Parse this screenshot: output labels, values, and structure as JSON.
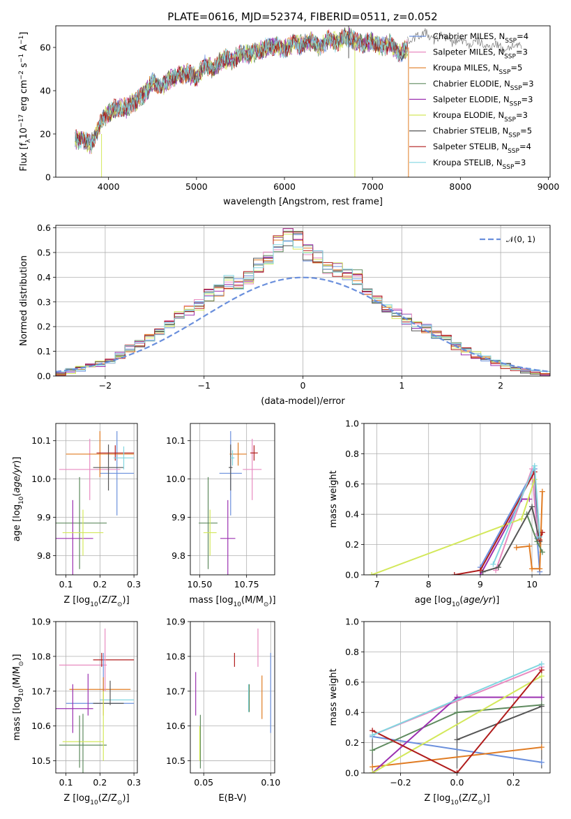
{
  "figure": {
    "title": "PLATE=0616, MJD=52374, FIBERID=0511, z=0.052"
  },
  "models": [
    {
      "name": "Chabrier MILES",
      "nssp": "4",
      "color": "#6a8fdc"
    },
    {
      "name": "Salpeter MILES",
      "nssp": "3",
      "color": "#e88ac0"
    },
    {
      "name": "Kroupa MILES",
      "nssp": "5",
      "color": "#e07b22"
    },
    {
      "name": "Chabrier ELODIE",
      "nssp": "3",
      "color": "#5e8a5e"
    },
    {
      "name": "Salpeter ELODIE",
      "nssp": "3",
      "color": "#9b30b0"
    },
    {
      "name": "Kroupa ELODIE",
      "nssp": "3",
      "color": "#d3e85a"
    },
    {
      "name": "Chabrier STELIB",
      "nssp": "5",
      "color": "#555555"
    },
    {
      "name": "Salpeter STELIB",
      "nssp": "4",
      "color": "#b01c1c"
    },
    {
      "name": "Kroupa STELIB",
      "nssp": "3",
      "color": "#82d6e0"
    }
  ],
  "chart_data": [
    {
      "id": "spectrum",
      "type": "line",
      "xlabel": "wavelength [Angstrom, rest frame]",
      "ylabel_parts": [
        "Flux [f",
        "λ",
        "10",
        "−17",
        " erg cm",
        "−2",
        " s",
        "−1",
        " A",
        "−1",
        "]"
      ],
      "xlim": [
        3400,
        9020
      ],
      "ylim": [
        0,
        70
      ],
      "xticks": [
        4000,
        5000,
        6000,
        7000,
        8000,
        9000
      ],
      "yticks": [
        0,
        20,
        40,
        60
      ],
      "legend_position": "upper right",
      "legend_suffix_label": "N",
      "legend_suffix_sub": "SSP",
      "envelope": {
        "x": [
          3620,
          3700,
          3800,
          3900,
          3960,
          4000,
          4100,
          4200,
          4300,
          4400,
          4500,
          4600,
          4700,
          4800,
          4900,
          5000,
          5100,
          5200,
          5300,
          5400,
          5500,
          5600,
          5700,
          5800,
          5900,
          6000,
          6100,
          6200,
          6300,
          6400,
          6500,
          6600,
          6700,
          6800,
          6900,
          7000,
          7100,
          7200,
          7300,
          7400
        ],
        "y": [
          17,
          18,
          15,
          24,
          28,
          30,
          32,
          32,
          35,
          38,
          44,
          42,
          45,
          47,
          48,
          46,
          52,
          50,
          55,
          54,
          57,
          57,
          58,
          60,
          61,
          59,
          62,
          61,
          63,
          60,
          64,
          62,
          65,
          63,
          62,
          63,
          60,
          62,
          57,
          60
        ]
      },
      "extra_observed": {
        "x": [
          7400,
          7500,
          7600,
          7700,
          7800,
          7900,
          8000,
          8100,
          8200,
          8300,
          8400,
          8500,
          8600,
          8700
        ],
        "y": [
          63,
          65,
          67,
          63,
          66,
          62,
          64,
          61,
          63,
          60,
          62,
          59,
          61,
          60
        ]
      },
      "spikes": [
        {
          "x": 3920,
          "y_top": 20,
          "y_bottom": 0,
          "series": "Kroupa ELODIE"
        },
        {
          "x": 6800,
          "y_top": 62,
          "y_bottom": 0,
          "series": "Kroupa ELODIE"
        },
        {
          "x": 6730,
          "y_top": 70,
          "y_bottom": 55,
          "series": "Chabrier STELIB"
        },
        {
          "x": 7410,
          "y_top": 60,
          "y_bottom": 0,
          "series": "Kroupa MILES"
        }
      ]
    },
    {
      "id": "residual-histogram",
      "type": "step-histogram",
      "xlabel": "(data-model)/error",
      "ylabel": "Normed distribution",
      "xlim": [
        -2.5,
        2.5
      ],
      "ylim": [
        0,
        0.61
      ],
      "xticks": [
        -2,
        -1,
        0,
        1,
        2
      ],
      "yticks": [
        0.0,
        0.1,
        0.2,
        0.3,
        0.4,
        0.5,
        0.6
      ],
      "grid": true,
      "bin_width": 0.1,
      "bin_start": -2.6,
      "base_shape": [
        0.008,
        0.012,
        0.02,
        0.03,
        0.04,
        0.05,
        0.065,
        0.085,
        0.11,
        0.13,
        0.155,
        0.18,
        0.21,
        0.24,
        0.265,
        0.285,
        0.33,
        0.35,
        0.38,
        0.38,
        0.4,
        0.45,
        0.48,
        0.54,
        0.56,
        0.55,
        0.5,
        0.48,
        0.44,
        0.43,
        0.42,
        0.4,
        0.33,
        0.3,
        0.28,
        0.25,
        0.23,
        0.2,
        0.19,
        0.17,
        0.15,
        0.12,
        0.1,
        0.085,
        0.07,
        0.055,
        0.04,
        0.03,
        0.02,
        0.015,
        0.01,
        0.005
      ],
      "reference_curve": {
        "label": "𝒩(0, 1)",
        "mean": 0,
        "sigma": 1,
        "color": "#6a8fdc"
      }
    },
    {
      "id": "age-vs-metallicity",
      "type": "errorbar",
      "xlabel_prefix": "Z [log",
      "xlabel_sub": "10",
      "xlabel_suffix": "(Z/Z",
      "xlabel_sun": "⊙",
      "xlabel_end": ")]",
      "ylabel_prefix": "age  [log",
      "ylabel_sub": "10",
      "ylabel_suffix": "(age/yr)]",
      "xlim": [
        0.07,
        0.31
      ],
      "ylim": [
        9.75,
        10.145
      ],
      "xticks": [
        "0.1",
        "0.2",
        "0.3"
      ],
      "yticks": [
        "9.8",
        "9.9",
        "10.0",
        "10.1"
      ],
      "grid": true,
      "points": [
        {
          "series": "Chabrier MILES",
          "x": 0.25,
          "xerr": 0.05,
          "y": 10.015,
          "yerr": 0.11
        },
        {
          "series": "Salpeter MILES",
          "x": 0.17,
          "xerr": 0.09,
          "y": 10.025,
          "yerr": 0.08
        },
        {
          "series": "Kroupa MILES",
          "x": 0.2,
          "xerr": 0.1,
          "y": 10.065,
          "yerr": 0.06
        },
        {
          "series": "Chabrier ELODIE",
          "x": 0.14,
          "xerr": 0.08,
          "y": 9.885,
          "yerr": 0.12
        },
        {
          "series": "Salpeter ELODIE",
          "x": 0.12,
          "xerr": 0.06,
          "y": 9.845,
          "yerr": 0.1
        },
        {
          "series": "Kroupa ELODIE",
          "x": 0.15,
          "xerr": 0.06,
          "y": 9.86,
          "yerr": 0.06
        },
        {
          "series": "Chabrier STELIB",
          "x": 0.225,
          "xerr": 0.045,
          "y": 10.03,
          "yerr": 0.06
        },
        {
          "series": "Salpeter STELIB",
          "x": 0.245,
          "xerr": 0.055,
          "y": 10.068,
          "yerr": 0.02
        },
        {
          "series": "Kroupa STELIB",
          "x": 0.27,
          "xerr": 0.03,
          "y": 10.055,
          "yerr": 0.03
        }
      ]
    },
    {
      "id": "age-vs-mass",
      "type": "errorbar",
      "xlabel_prefix": "mass [log",
      "xlabel_sub": "10",
      "xlabel_suffix": "(M/M",
      "xlabel_sun": "⊙",
      "xlabel_end": ")]",
      "xlim": [
        10.45,
        10.9
      ],
      "ylim": [
        9.75,
        10.145
      ],
      "xticks": [
        "10.50",
        "10.75"
      ],
      "yticks": [
        "9.8",
        "9.9",
        "10.0",
        "10.1"
      ],
      "grid": true,
      "points": [
        {
          "series": "Chabrier MILES",
          "x": 10.665,
          "xerr": 0.06,
          "y": 10.015,
          "yerr": 0.11
        },
        {
          "series": "Salpeter MILES",
          "x": 10.78,
          "xerr": 0.05,
          "y": 10.025,
          "yerr": 0.08
        },
        {
          "series": "Kroupa MILES",
          "x": 10.705,
          "xerr": 0.045,
          "y": 10.065,
          "yerr": 0.03
        },
        {
          "series": "Chabrier ELODIE",
          "x": 10.545,
          "xerr": 0.05,
          "y": 9.885,
          "yerr": 0.12
        },
        {
          "series": "Salpeter ELODIE",
          "x": 10.65,
          "xerr": 0.04,
          "y": 9.845,
          "yerr": 0.1
        },
        {
          "series": "Kroupa ELODIE",
          "x": 10.555,
          "xerr": 0.035,
          "y": 9.86,
          "yerr": 0.06
        },
        {
          "series": "Chabrier STELIB",
          "x": 10.665,
          "xerr": 0.01,
          "y": 10.03,
          "yerr": 0.06
        },
        {
          "series": "Salpeter STELIB",
          "x": 10.79,
          "xerr": 0.02,
          "y": 10.068,
          "yerr": 0.02
        },
        {
          "series": "Kroupa STELIB",
          "x": 10.675,
          "xerr": 0.01,
          "y": 10.055,
          "yerr": 0.02
        }
      ]
    },
    {
      "id": "weight-vs-age",
      "type": "line",
      "xlabel_prefix": "age  [log",
      "xlabel_sub": "10",
      "xlabel_suffix": "(age/yr)]",
      "ylabel": "mass weight",
      "xlim": [
        6.75,
        10.35
      ],
      "ylim": [
        0,
        1.0
      ],
      "xticks": [
        "7",
        "8",
        "9",
        "10"
      ],
      "yticks": [
        "0.0",
        "0.2",
        "0.4",
        "0.6",
        "0.8",
        "1.0"
      ],
      "grid": true,
      "series": [
        {
          "name": "Chabrier MILES",
          "x": [
            9.0,
            10.05,
            10.1,
            10.15
          ],
          "y": [
            0.05,
            0.7,
            0.24,
            0.02
          ]
        },
        {
          "name": "Salpeter MILES",
          "x": [
            9.3,
            10.0,
            10.1
          ],
          "y": [
            0.03,
            0.7,
            0.27
          ]
        },
        {
          "name": "Kroupa MILES",
          "x": [
            9.7,
            9.95,
            10.0,
            10.15,
            10.2
          ],
          "y": [
            0.18,
            0.19,
            0.04,
            0.04,
            0.55
          ]
        },
        {
          "name": "Chabrier ELODIE",
          "x": [
            9.9,
            10.1,
            10.2
          ],
          "y": [
            0.4,
            0.22,
            0.15
          ]
        },
        {
          "name": "Salpeter ELODIE",
          "x": [
            9.0,
            9.8,
            9.95
          ],
          "y": [
            0.0,
            0.5,
            0.5
          ]
        },
        {
          "name": "Kroupa ELODIE",
          "x": [
            6.9,
            9.8,
            10.05
          ],
          "y": [
            0.0,
            0.37,
            0.63
          ]
        },
        {
          "name": "Chabrier STELIB",
          "x": [
            9.05,
            9.35,
            10.0,
            10.15
          ],
          "y": [
            0.02,
            0.05,
            0.45,
            0.22
          ]
        },
        {
          "name": "Salpeter STELIB",
          "x": [
            8.5,
            9.0,
            10.05,
            10.15,
            10.2
          ],
          "y": [
            0.0,
            0.03,
            0.68,
            0.23,
            0.28
          ]
        },
        {
          "name": "Kroupa STELIB",
          "x": [
            9.25,
            10.05,
            10.15
          ],
          "y": [
            0.07,
            0.72,
            0.25
          ]
        }
      ]
    },
    {
      "id": "mass-vs-metallicity",
      "type": "errorbar",
      "xlabel_prefix": "Z [log",
      "xlabel_sub": "10",
      "xlabel_suffix": "(Z/Z",
      "xlabel_sun": "⊙",
      "xlabel_end": ")]",
      "ylabel_prefix": "mass [log",
      "ylabel_sub": "10",
      "ylabel_suffix": "(M/M",
      "ylabel_sun": "⊙",
      "ylabel_end": ")]",
      "xlim": [
        0.07,
        0.31
      ],
      "ylim": [
        10.465,
        10.9
      ],
      "xticks": [
        "0.1",
        "0.2",
        "0.3"
      ],
      "yticks": [
        "10.5",
        "10.6",
        "10.7",
        "10.8",
        "10.9"
      ],
      "grid": true,
      "points": [
        {
          "series": "Chabrier MILES",
          "x": 0.2,
          "xerr": 0.1,
          "y": 10.665,
          "yerr": 0.0
        },
        {
          "series": "Salpeter MILES",
          "x": 0.15,
          "xerr": 0.07,
          "y": 10.775,
          "yerr": 0.0
        },
        {
          "series": "Kroupa MILES",
          "x": 0.2,
          "xerr": 0.09,
          "y": 10.705,
          "yerr": 0.0
        },
        {
          "series": "Chabrier ELODIE",
          "x": 0.15,
          "xerr": 0.07,
          "y": 10.545,
          "yerr": 0.09
        },
        {
          "series": "Salpeter ELODIE",
          "x": 0.12,
          "xerr": 0.06,
          "y": 10.65,
          "yerr": 0.07
        },
        {
          "series": "Kroupa ELODIE",
          "x": 0.15,
          "xerr": 0.06,
          "y": 10.555,
          "yerr": 0.0
        },
        {
          "series": "Chabrier STELIB",
          "x": 0.225,
          "xerr": 0.045,
          "y": 10.665,
          "yerr": 0.0
        },
        {
          "series": "Salpeter STELIB",
          "x": 0.24,
          "xerr": 0.06,
          "y": 10.79,
          "yerr": 0.0
        },
        {
          "series": "Kroupa STELIB",
          "x": 0.25,
          "xerr": 0.05,
          "y": 10.675,
          "yerr": 0.0
        }
      ],
      "vertical_marks": [
        {
          "series": "Salpeter MILES",
          "x": 0.215,
          "y_from": 10.7,
          "y_to": 10.88
        },
        {
          "series": "Chabrier MILES",
          "x": 0.21,
          "y_from": 10.7,
          "y_to": 10.81
        },
        {
          "series": "Salpeter ELODIE",
          "x": 0.165,
          "y_from": 10.63,
          "y_to": 10.75
        },
        {
          "series": "Kroupa MILES",
          "x": 0.21,
          "y_from": 10.63,
          "y_to": 10.74
        },
        {
          "series": "Chabrier STELIB",
          "x": 0.23,
          "y_from": 10.66,
          "y_to": 10.73
        },
        {
          "series": "Salpeter STELIB",
          "x": 0.205,
          "y_from": 10.77,
          "y_to": 10.81
        },
        {
          "series": "Kroupa ELODIE",
          "x": 0.21,
          "y_from": 10.5,
          "y_to": 10.7
        },
        {
          "series": "Chabrier ELODIE",
          "x": 0.14,
          "y_from": 10.48,
          "y_to": 10.63
        }
      ]
    },
    {
      "id": "mass-vs-ebv",
      "type": "errorbar",
      "xlabel": "E(B-V)",
      "xlim": [
        0.04,
        0.103
      ],
      "ylim": [
        10.465,
        10.9
      ],
      "xticks": [
        "0.05",
        "0.10"
      ],
      "yticks": [
        "10.5",
        "10.6",
        "10.7",
        "10.8",
        "10.9"
      ],
      "grid": true,
      "segments": [
        {
          "series": "Salpeter ELODIE",
          "x": 0.044,
          "y_from": 10.63,
          "y_to": 10.755
        },
        {
          "series": "Chabrier ELODIE",
          "x": 0.0475,
          "y_from": 10.478,
          "y_to": 10.632
        },
        {
          "series": "Kroupa ELODIE",
          "x": 0.047,
          "y_from": 10.5,
          "y_to": 10.6
        },
        {
          "series": "Salpeter STELIB",
          "x": 0.073,
          "y_from": 10.77,
          "y_to": 10.81
        },
        {
          "series": "Kroupa STELIB",
          "x": 0.0835,
          "y_from": 10.64,
          "y_to": 10.72
        },
        {
          "series": "Chabrier ELODIE",
          "x": 0.084,
          "y_from": 10.64,
          "y_to": 10.72
        },
        {
          "series": "Salpeter MILES",
          "x": 0.0905,
          "y_from": 10.77,
          "y_to": 10.88
        },
        {
          "series": "Kroupa MILES",
          "x": 0.0935,
          "y_from": 10.62,
          "y_to": 10.745
        },
        {
          "series": "Chabrier MILES",
          "x": 0.1,
          "y_from": 10.58,
          "y_to": 10.81
        }
      ]
    },
    {
      "id": "weight-vs-metallicity",
      "type": "line",
      "xlabel_prefix": "Z [log",
      "xlabel_sub": "10",
      "xlabel_suffix": "(Z/Z",
      "xlabel_sun": "⊙",
      "xlabel_end": ")]",
      "ylabel": "mass weight",
      "xlim": [
        -0.33,
        0.33
      ],
      "ylim": [
        0,
        1.0
      ],
      "xticks": [
        "−0.2",
        "0.0",
        "0.2"
      ],
      "yticks": [
        "0.0",
        "0.2",
        "0.4",
        "0.6",
        "0.8",
        "1.0"
      ],
      "grid": true,
      "series": [
        {
          "name": "Chabrier MILES",
          "x": [
            -0.3,
            0.3
          ],
          "y": [
            0.24,
            0.07
          ]
        },
        {
          "name": "Salpeter MILES",
          "x": [
            -0.3,
            0.3
          ],
          "y": [
            0.25,
            0.7
          ]
        },
        {
          "name": "Kroupa MILES",
          "x": [
            -0.3,
            0.3
          ],
          "y": [
            0.04,
            0.17
          ]
        },
        {
          "name": "Chabrier ELODIE",
          "x": [
            -0.3,
            0.0,
            0.3
          ],
          "y": [
            0.15,
            0.4,
            0.45
          ]
        },
        {
          "name": "Salpeter ELODIE",
          "x": [
            -0.3,
            0.0,
            0.3
          ],
          "y": [
            0.0,
            0.5,
            0.5
          ]
        },
        {
          "name": "Kroupa ELODIE",
          "x": [
            -0.3,
            0.3
          ],
          "y": [
            0.0,
            0.64
          ]
        },
        {
          "name": "Chabrier STELIB",
          "x": [
            0.0,
            0.3
          ],
          "y": [
            0.22,
            0.44
          ]
        },
        {
          "name": "Salpeter STELIB",
          "x": [
            -0.3,
            0.0,
            0.3
          ],
          "y": [
            0.28,
            0.0,
            0.68
          ]
        },
        {
          "name": "Kroupa STELIB",
          "x": [
            -0.3,
            0.3
          ],
          "y": [
            0.25,
            0.72
          ]
        }
      ],
      "vertical_marks": [
        {
          "x": -0.3,
          "y_from": 0.0,
          "y_to": 0.28
        },
        {
          "x": 0.0,
          "y_from": 0.03,
          "y_to": 0.5
        },
        {
          "x": 0.3,
          "y_from": 0.03,
          "y_to": 0.72
        }
      ]
    }
  ]
}
